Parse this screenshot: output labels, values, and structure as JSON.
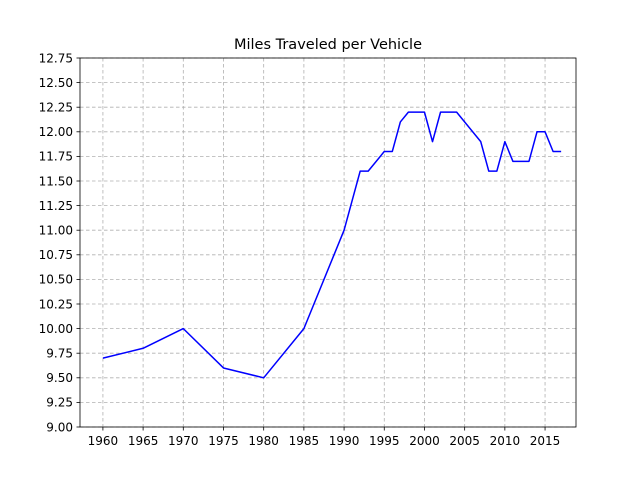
{
  "chart_data": {
    "type": "line",
    "title": "Miles Traveled per Vehicle",
    "xlabel": "",
    "ylabel": "",
    "xlim": [
      1957.15,
      2018.85
    ],
    "ylim": [
      9.0,
      12.75
    ],
    "xticks": [
      1960,
      1965,
      1970,
      1975,
      1980,
      1985,
      1990,
      1995,
      2000,
      2005,
      2010,
      2015
    ],
    "yticks": [
      "9.00",
      "9.25",
      "9.50",
      "9.75",
      "10.00",
      "10.25",
      "10.50",
      "10.75",
      "11.00",
      "11.25",
      "11.50",
      "11.75",
      "12.00",
      "12.25",
      "12.50",
      "12.75"
    ],
    "grid": true,
    "series": [
      {
        "color": "#0000ff",
        "x": [
          1960,
          1965,
          1970,
          1975,
          1980,
          1985,
          1990,
          1991,
          1992,
          1993,
          1995,
          1996,
          1997,
          1998,
          1999,
          2000,
          2001,
          2002,
          2003,
          2004,
          2007,
          2008,
          2009,
          2010,
          2011,
          2012,
          2013,
          2014,
          2015,
          2016,
          2017
        ],
        "y": [
          9.7,
          9.8,
          10.0,
          9.6,
          9.5,
          10.0,
          11.0,
          11.3,
          11.6,
          11.6,
          11.8,
          11.8,
          12.1,
          12.2,
          12.2,
          12.2,
          11.9,
          12.2,
          12.2,
          12.2,
          11.9,
          11.6,
          11.6,
          11.9,
          11.7,
          11.7,
          11.7,
          12.0,
          12.0,
          11.8,
          11.8
        ]
      }
    ]
  }
}
